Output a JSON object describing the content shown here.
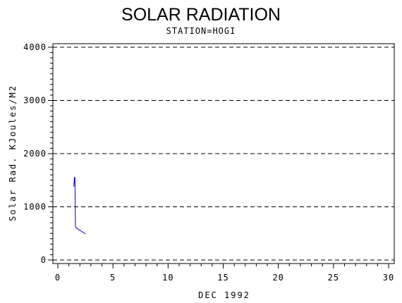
{
  "chart_data": {
    "type": "line",
    "title": "SOLAR RADIATION",
    "subtitle": "STATION=HOGI",
    "xlabel": "DEC 1992",
    "ylabel": "Solar Rad. KJoules/M2",
    "xlim": [
      0,
      30
    ],
    "ylim": [
      0,
      4000
    ],
    "xticks": [
      0,
      5,
      10,
      15,
      20,
      25,
      30
    ],
    "yticks": [
      0,
      1000,
      2000,
      3000,
      4000
    ],
    "grid": "horizontal dashed",
    "series": [
      {
        "color": "#0000cc",
        "x": [
          1.5,
          1.45,
          1.55,
          1.6,
          1.7,
          2.5
        ],
        "y": [
          1560,
          1380,
          1550,
          620,
          600,
          490
        ]
      }
    ]
  }
}
